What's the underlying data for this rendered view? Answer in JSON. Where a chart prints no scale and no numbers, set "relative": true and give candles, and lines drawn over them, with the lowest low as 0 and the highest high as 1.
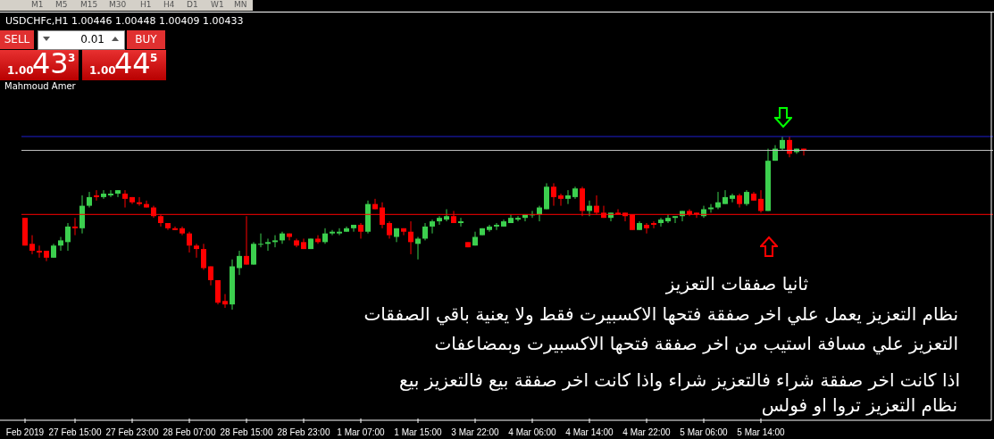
{
  "chart_data": {
    "type": "candlestick",
    "title": "USDCHFc,H1 1.00446 1.00448 1.00409 1.00433",
    "relative": true,
    "categories": [
      "Feb 2019",
      null,
      null,
      null,
      null,
      null,
      null,
      "27 Feb 15:00",
      null,
      null,
      null,
      null,
      null,
      null,
      null,
      "27 Feb 23:00",
      null,
      null,
      null,
      null,
      null,
      null,
      null,
      "28 Feb 07:00",
      null,
      null,
      null,
      null,
      null,
      null,
      null,
      "28 Feb 15:00",
      null,
      null,
      null,
      null,
      null,
      null,
      null,
      "28 Feb 23:00",
      null,
      null,
      null,
      null,
      null,
      null,
      null,
      "1 Mar 07:00",
      null,
      null,
      null,
      null,
      null,
      null,
      null,
      "1 Mar 15:00",
      null,
      null,
      null,
      null,
      null,
      null,
      null,
      "3 Mar 22:00",
      null,
      null,
      null,
      null,
      null,
      null,
      null,
      "4 Mar 06:00",
      null,
      null,
      null,
      null,
      null,
      null,
      null,
      "4 Mar 14:00",
      null,
      null,
      null,
      null,
      null,
      null,
      null,
      "4 Mar 22:00",
      null,
      null,
      null,
      null,
      null,
      null,
      null,
      "5 Mar 06:00",
      null,
      null,
      null,
      null,
      null,
      null,
      null,
      "5 Mar 14:00",
      null,
      null,
      null,
      null,
      null,
      null,
      null,
      null,
      null,
      null,
      null,
      null,
      null,
      null,
      null,
      null,
      null,
      null,
      null,
      null,
      null,
      null,
      null,
      null,
      null,
      null,
      null,
      null,
      null,
      null,
      null,
      null
    ],
    "ohlc": [
      [
        0.53,
        0.53,
        0.37,
        0.37
      ],
      [
        0.38,
        0.43,
        0.32,
        0.34
      ],
      [
        0.34,
        0.37,
        0.3,
        0.33
      ],
      [
        0.34,
        0.34,
        0.28,
        0.3
      ],
      [
        0.3,
        0.38,
        0.3,
        0.37
      ],
      [
        0.37,
        0.42,
        0.34,
        0.4
      ],
      [
        0.39,
        0.5,
        0.34,
        0.48
      ],
      [
        0.48,
        0.53,
        0.43,
        0.47
      ],
      [
        0.47,
        0.66,
        0.44,
        0.6
      ],
      [
        0.6,
        0.68,
        0.59,
        0.65
      ],
      [
        0.66,
        0.69,
        0.63,
        0.65
      ],
      [
        0.65,
        0.69,
        0.64,
        0.67
      ],
      [
        0.66,
        0.69,
        0.65,
        0.67
      ],
      [
        0.67,
        0.69,
        0.65,
        0.69
      ],
      [
        0.67,
        0.69,
        0.59,
        0.64
      ],
      [
        0.65,
        0.65,
        0.61,
        0.62
      ],
      [
        0.62,
        0.65,
        0.6,
        0.61
      ],
      [
        0.61,
        0.63,
        0.59,
        0.59
      ],
      [
        0.59,
        0.6,
        0.53,
        0.54
      ],
      [
        0.54,
        0.55,
        0.48,
        0.5
      ],
      [
        0.5,
        0.5,
        0.46,
        0.47
      ],
      [
        0.47,
        0.48,
        0.46,
        0.46
      ],
      [
        0.47,
        0.48,
        0.43,
        0.44
      ],
      [
        0.44,
        0.45,
        0.33,
        0.37
      ],
      [
        0.37,
        0.38,
        0.3,
        0.35
      ],
      [
        0.35,
        0.38,
        0.23,
        0.24
      ],
      [
        0.25,
        0.25,
        0.14,
        0.17
      ],
      [
        0.17,
        0.17,
        0.03,
        0.04
      ],
      [
        0.05,
        0.09,
        0.01,
        0.03
      ],
      [
        0.03,
        0.29,
        0,
        0.25
      ],
      [
        0.24,
        0.34,
        0.2,
        0.31
      ],
      [
        0.31,
        0.54,
        0.26,
        0.26
      ],
      [
        0.26,
        0.39,
        0.26,
        0.38
      ],
      [
        0.38,
        0.44,
        0.36,
        0.38
      ],
      [
        0.38,
        0.41,
        0.34,
        0.39
      ],
      [
        0.39,
        0.43,
        0.36,
        0.4
      ],
      [
        0.4,
        0.45,
        0.38,
        0.44
      ],
      [
        0.44,
        0.44,
        0.4,
        0.42
      ],
      [
        0.4,
        0.41,
        0.36,
        0.37
      ],
      [
        0.39,
        0.41,
        0.35,
        0.35
      ],
      [
        0.35,
        0.41,
        0.35,
        0.41
      ],
      [
        0.41,
        0.43,
        0.38,
        0.39
      ],
      [
        0.39,
        0.47,
        0.38,
        0.44
      ],
      [
        0.44,
        0.46,
        0.43,
        0.45
      ],
      [
        0.44,
        0.47,
        0.43,
        0.45
      ],
      [
        0.45,
        0.48,
        0.45,
        0.47
      ],
      [
        0.47,
        0.49,
        0.45,
        0.49
      ],
      [
        0.49,
        0.5,
        0.41,
        0.45
      ],
      [
        0.45,
        0.63,
        0.44,
        0.61
      ],
      [
        0.61,
        0.64,
        0.58,
        0.58
      ],
      [
        0.59,
        0.62,
        0.47,
        0.49
      ],
      [
        0.5,
        0.51,
        0.41,
        0.43
      ],
      [
        0.42,
        0.47,
        0.39,
        0.47
      ],
      [
        0.47,
        0.47,
        0.43,
        0.45
      ],
      [
        0.45,
        0.51,
        0.32,
        0.39
      ],
      [
        0.38,
        0.42,
        0.29,
        0.41
      ],
      [
        0.41,
        0.5,
        0.4,
        0.48
      ],
      [
        0.48,
        0.52,
        0.44,
        0.51
      ],
      [
        0.51,
        0.54,
        0.49,
        0.53
      ],
      [
        0.52,
        0.58,
        0.51,
        0.54
      ],
      [
        0.54,
        0.57,
        0.5,
        0.5
      ],
      [
        0.5,
        0.53,
        0.48,
        0.51
      ],
      [
        0.39,
        0.39,
        0.36,
        0.36
      ],
      [
        0.37,
        0.45,
        0.37,
        0.42
      ],
      [
        0.43,
        0.47,
        0.43,
        0.47
      ],
      [
        0.46,
        0.49,
        0.45,
        0.48
      ],
      [
        0.48,
        0.5,
        0.46,
        0.49
      ],
      [
        0.48,
        0.52,
        0.48,
        0.51
      ],
      [
        0.5,
        0.55,
        0.5,
        0.53
      ],
      [
        0.52,
        0.54,
        0.51,
        0.53
      ],
      [
        0.53,
        0.55,
        0.51,
        0.55
      ],
      [
        0.55,
        0.57,
        0.53,
        0.55
      ],
      [
        0.55,
        0.6,
        0.51,
        0.59
      ],
      [
        0.58,
        0.73,
        0.58,
        0.71
      ],
      [
        0.71,
        0.73,
        0.6,
        0.65
      ],
      [
        0.66,
        0.67,
        0.6,
        0.64
      ],
      [
        0.64,
        0.69,
        0.61,
        0.66
      ],
      [
        0.65,
        0.71,
        0.64,
        0.7
      ],
      [
        0.7,
        0.71,
        0.54,
        0.57
      ],
      [
        0.57,
        0.63,
        0.54,
        0.6
      ],
      [
        0.6,
        0.66,
        0.55,
        0.56
      ],
      [
        0.56,
        0.6,
        0.53,
        0.53
      ],
      [
        0.53,
        0.56,
        0.51,
        0.56
      ],
      [
        0.56,
        0.58,
        0.55,
        0.55
      ],
      [
        0.56,
        0.56,
        0.51,
        0.54
      ],
      [
        0.55,
        0.55,
        0.46,
        0.46
      ],
      [
        0.46,
        0.51,
        0.46,
        0.5
      ],
      [
        0.49,
        0.5,
        0.44,
        0.47
      ],
      [
        0.5,
        0.51,
        0.47,
        0.49
      ],
      [
        0.5,
        0.53,
        0.48,
        0.52
      ],
      [
        0.51,
        0.55,
        0.5,
        0.53
      ],
      [
        0.53,
        0.54,
        0.5,
        0.54
      ],
      [
        0.54,
        0.57,
        0.51,
        0.57
      ],
      [
        0.57,
        0.58,
        0.54,
        0.55
      ],
      [
        0.56,
        0.56,
        0.53,
        0.55
      ],
      [
        0.54,
        0.6,
        0.53,
        0.58
      ],
      [
        0.58,
        0.61,
        0.56,
        0.59
      ],
      [
        0.59,
        0.68,
        0.58,
        0.62
      ],
      [
        0.61,
        0.69,
        0.61,
        0.65
      ],
      [
        0.64,
        0.67,
        0.62,
        0.66
      ],
      [
        0.66,
        0.67,
        0.59,
        0.61
      ],
      [
        0.61,
        0.69,
        0.6,
        0.68
      ],
      [
        0.67,
        0.68,
        0.63,
        0.63
      ],
      [
        0.64,
        0.69,
        0.56,
        0.57
      ],
      [
        0.57,
        0.93,
        0.57,
        0.86
      ],
      [
        0.86,
        0.95,
        0.86,
        0.93
      ],
      [
        0.93,
        1,
        0.92,
        0.98
      ],
      [
        0.98,
        1,
        0.88,
        0.9
      ],
      [
        0.91,
        0.93,
        0.9,
        0.93
      ],
      [
        0.93,
        0.93,
        0.89,
        0.92
      ],
      null,
      null,
      null,
      null,
      null,
      null,
      null,
      null,
      null,
      null,
      null,
      null,
      null,
      null,
      null,
      null,
      null,
      null,
      null,
      null,
      null,
      null,
      null,
      null,
      null,
      null
    ],
    "colors": [
      "#ff0000",
      "#ff0000",
      "#ff0000",
      "#ff0000",
      "#3ccf4e",
      "#3ccf4e",
      "#3ccf4e",
      "#ff0000",
      "#3ccf4e",
      "#3ccf4e",
      "#ff0000",
      "#3ccf4e",
      "#3ccf4e",
      "#3ccf4e",
      "#ff0000",
      "#ff0000",
      "#ff0000",
      "#ff0000",
      "#ff0000",
      "#ff0000",
      "#ff0000",
      "#ff0000",
      "#ff0000",
      "#ff0000",
      "#ff0000",
      "#ff0000",
      "#ff0000",
      "#ff0000",
      "#ff0000",
      "#3ccf4e",
      "#3ccf4e",
      "#ff0000",
      "#3ccf4e",
      "#3ccf4e",
      "#3ccf4e",
      "#3ccf4e",
      "#3ccf4e",
      "#ff0000",
      "#ff0000",
      "#ff0000",
      "#3ccf4e",
      "#ff0000",
      "#3ccf4e",
      "#3ccf4e",
      "#3ccf4e",
      "#3ccf4e",
      "#3ccf4e",
      "#ff0000",
      "#3ccf4e",
      "#ff0000",
      "#ff0000",
      "#ff0000",
      "#3ccf4e",
      "#ff0000",
      "#ff0000",
      "#3ccf4e",
      "#3ccf4e",
      "#3ccf4e",
      "#3ccf4e",
      "#3ccf4e",
      "#ff0000",
      "#3ccf4e",
      "#ff0000",
      "#3ccf4e",
      "#3ccf4e",
      "#3ccf4e",
      "#3ccf4e",
      "#3ccf4e",
      "#3ccf4e",
      "#3ccf4e",
      "#3ccf4e",
      "#3ccf4e",
      "#3ccf4e",
      "#3ccf4e",
      "#ff0000",
      "#ff0000",
      "#3ccf4e",
      "#3ccf4e",
      "#ff0000",
      "#3ccf4e",
      "#ff0000",
      "#ff0000",
      "#3ccf4e",
      "#ff0000",
      "#ff0000",
      "#ff0000",
      "#3ccf4e",
      "#ff0000",
      "#ff0000",
      "#3ccf4e",
      "#3ccf4e",
      "#3ccf4e",
      "#3ccf4e",
      "#ff0000",
      "#ff0000",
      "#3ccf4e",
      "#3ccf4e",
      "#3ccf4e",
      "#3ccf4e",
      "#3ccf4e",
      "#ff0000",
      "#3ccf4e",
      "#ff0000",
      "#ff0000",
      "#3ccf4e",
      "#3ccf4e",
      "#3ccf4e",
      "#ff0000",
      "#3ccf4e",
      "#ff0000",
      null,
      null,
      null,
      null,
      null,
      null,
      null,
      null,
      null,
      null,
      null,
      null,
      null,
      null,
      null,
      null,
      null,
      null,
      null,
      null,
      null,
      null,
      null,
      null,
      null,
      null
    ],
    "ref_lines": [
      {
        "axis": "y",
        "value": 1.0,
        "color": "#1e1ed2"
      },
      {
        "axis": "y",
        "value": 0.92,
        "color": "#c0c0c0"
      },
      {
        "axis": "y",
        "value": 0.55,
        "color": "#ff0000"
      }
    ],
    "annotations": [
      "SELL",
      "0.01",
      "BUY",
      "1.00",
      "43",
      "3",
      "1.00",
      "44",
      "5",
      "Mahmoud Amer",
      "ثانيا صفقات التعزيز",
      "نظام التعزيز يعمل علي اخر صفقة فتحها الاكسبيرت فقط ولا يعنية باقي الصفقات",
      "التعزيز علي مسافة استيب من اخر صفقة فتحها الاكسبيرت وبمضاعفات",
      "اذا كانت اخر صفقة شراء فالتعزيز شراء واذا كانت اخر صفقة بيع فالتعزيز بيع",
      "نظام التعزيز تروا او فولس",
      "M1",
      "M5",
      "M15",
      "M30",
      "H1",
      "H4",
      "D1",
      "W1",
      "MN"
    ]
  }
}
